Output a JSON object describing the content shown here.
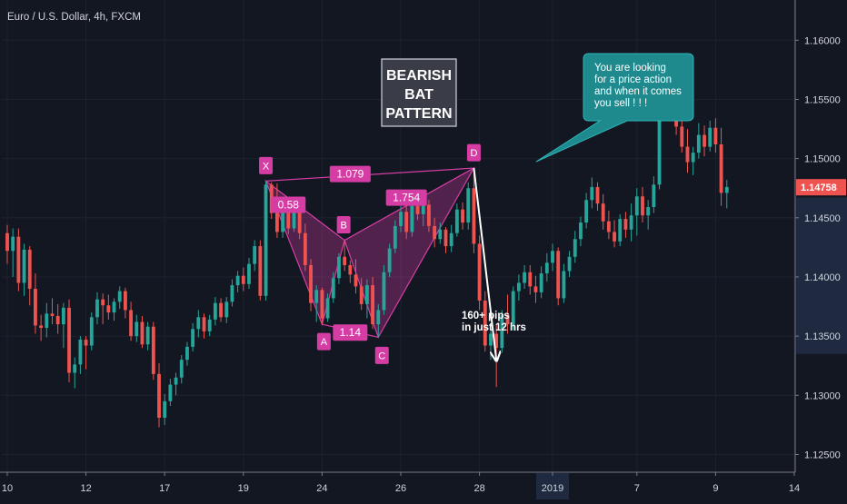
{
  "chart_data": {
    "type": "candlestick",
    "title": "Euro / U.S. Dollar, 4h, FXCM",
    "xlabel": "",
    "ylabel": "",
    "y_ticks": [
      "1.16000",
      "1.15500",
      "1.15000",
      "1.14500",
      "1.14000",
      "1.13500",
      "1.13000",
      "1.12500"
    ],
    "y_tick_values": [
      1.16,
      1.155,
      1.15,
      1.145,
      1.14,
      1.135,
      1.13,
      1.125
    ],
    "ylim": [
      1.1235,
      1.1634
    ],
    "x_ticks": [
      "10",
      "12",
      "17",
      "19",
      "24",
      "26",
      "28",
      "2019",
      "7",
      "9",
      "14"
    ],
    "x_tick_index": [
      0,
      14,
      28,
      42,
      56,
      70,
      84,
      97,
      112,
      126,
      140
    ],
    "x_index_range": [
      0,
      140
    ],
    "highlight_x_tick": "2019",
    "current_price": "1.14758",
    "current_price_value": 1.14758,
    "colors": {
      "up": "#26a69a",
      "down": "#ef5350",
      "pattern": "#d63da4",
      "callout": "#1e8a8e"
    },
    "pattern_points": [
      {
        "label": "X",
        "index": 46,
        "value": 1.1481
      },
      {
        "label": "A",
        "index": 56,
        "value": 1.136
      },
      {
        "label": "B",
        "index": 60,
        "value": 1.1431
      },
      {
        "label": "C",
        "index": 66,
        "value": 1.1349
      },
      {
        "label": "D",
        "index": 83,
        "value": 1.1492
      }
    ],
    "ratios": [
      {
        "label": "1.079",
        "index": 61,
        "value": 1.1487
      },
      {
        "label": "0.58",
        "index": 50,
        "value": 1.1461
      },
      {
        "label": "1.14",
        "index": 61,
        "value": 1.1353
      },
      {
        "label": "1.754",
        "index": 71,
        "value": 1.1467
      }
    ],
    "move_arrow": {
      "from_index": 83,
      "from_value": 1.1492,
      "to_index": 87,
      "to_value": 1.133
    },
    "annotations": {
      "pattern_name": [
        "BEARISH",
        "BAT",
        "PATTERN"
      ],
      "pips": [
        "160+ pips",
        "in just 12 hrs"
      ],
      "callout": [
        "You are looking",
        "for a price action",
        "and when it comes",
        "you sell ! ! !"
      ]
    },
    "candles": [
      [
        1.1437,
        1.1444,
        1.1411,
        1.1422
      ],
      [
        1.1422,
        1.1441,
        1.14,
        1.1434
      ],
      [
        1.1434,
        1.1441,
        1.1388,
        1.1395
      ],
      [
        1.1395,
        1.1428,
        1.1384,
        1.1423
      ],
      [
        1.1423,
        1.1426,
        1.1376,
        1.139
      ],
      [
        1.139,
        1.1403,
        1.1352,
        1.1359
      ],
      [
        1.1359,
        1.1368,
        1.1346,
        1.1357
      ],
      [
        1.1357,
        1.1378,
        1.1349,
        1.1369
      ],
      [
        1.1369,
        1.1382,
        1.136,
        1.1367
      ],
      [
        1.1367,
        1.1377,
        1.1352,
        1.136
      ],
      [
        1.136,
        1.1378,
        1.134,
        1.1374
      ],
      [
        1.1374,
        1.1381,
        1.1311,
        1.1319
      ],
      [
        1.1319,
        1.1332,
        1.1306,
        1.1326
      ],
      [
        1.1326,
        1.135,
        1.1318,
        1.1347
      ],
      [
        1.1347,
        1.135,
        1.1322,
        1.1342
      ],
      [
        1.1342,
        1.137,
        1.1338,
        1.1366
      ],
      [
        1.1366,
        1.1387,
        1.136,
        1.1381
      ],
      [
        1.1381,
        1.1386,
        1.136,
        1.1376
      ],
      [
        1.1376,
        1.1385,
        1.1364,
        1.137
      ],
      [
        1.137,
        1.1382,
        1.1363,
        1.1379
      ],
      [
        1.1379,
        1.1392,
        1.1373,
        1.1388
      ],
      [
        1.1388,
        1.1391,
        1.1365,
        1.1372
      ],
      [
        1.1372,
        1.1379,
        1.1346,
        1.135
      ],
      [
        1.135,
        1.1368,
        1.1345,
        1.1362
      ],
      [
        1.1362,
        1.1367,
        1.134,
        1.1343
      ],
      [
        1.1343,
        1.1362,
        1.1338,
        1.1358
      ],
      [
        1.1358,
        1.1362,
        1.1313,
        1.1318
      ],
      [
        1.1318,
        1.1327,
        1.1273,
        1.1281
      ],
      [
        1.1281,
        1.1301,
        1.1275,
        1.1295
      ],
      [
        1.1295,
        1.1314,
        1.1291,
        1.1309
      ],
      [
        1.1309,
        1.1319,
        1.13,
        1.1315
      ],
      [
        1.1315,
        1.1334,
        1.131,
        1.133
      ],
      [
        1.133,
        1.1345,
        1.1325,
        1.1341
      ],
      [
        1.1341,
        1.1361,
        1.1337,
        1.1356
      ],
      [
        1.1356,
        1.1372,
        1.1349,
        1.1366
      ],
      [
        1.1366,
        1.1369,
        1.1348,
        1.1354
      ],
      [
        1.1354,
        1.1368,
        1.135,
        1.1364
      ],
      [
        1.1364,
        1.1383,
        1.1359,
        1.1378
      ],
      [
        1.1378,
        1.1382,
        1.1362,
        1.1366
      ],
      [
        1.1366,
        1.1383,
        1.1361,
        1.1379
      ],
      [
        1.1379,
        1.1398,
        1.1375,
        1.1393
      ],
      [
        1.1393,
        1.1405,
        1.1387,
        1.1401
      ],
      [
        1.1401,
        1.1408,
        1.1388,
        1.1394
      ],
      [
        1.1394,
        1.1416,
        1.139,
        1.1411
      ],
      [
        1.1411,
        1.1431,
        1.1405,
        1.1426
      ],
      [
        1.1426,
        1.1431,
        1.138,
        1.1384
      ],
      [
        1.1384,
        1.1481,
        1.138,
        1.1478
      ],
      [
        1.1478,
        1.148,
        1.1449,
        1.1454
      ],
      [
        1.1454,
        1.1479,
        1.1433,
        1.1438
      ],
      [
        1.1438,
        1.146,
        1.1433,
        1.1455
      ],
      [
        1.1455,
        1.1461,
        1.1436,
        1.1441
      ],
      [
        1.1441,
        1.1463,
        1.1438,
        1.1459
      ],
      [
        1.1459,
        1.1462,
        1.1432,
        1.1437
      ],
      [
        1.1437,
        1.1445,
        1.1405,
        1.141
      ],
      [
        1.141,
        1.1415,
        1.1371,
        1.1378
      ],
      [
        1.1378,
        1.1393,
        1.1362,
        1.1389
      ],
      [
        1.1389,
        1.1391,
        1.136,
        1.1365
      ],
      [
        1.1365,
        1.1386,
        1.1362,
        1.1382
      ],
      [
        1.1382,
        1.1404,
        1.1378,
        1.1399
      ],
      [
        1.1399,
        1.142,
        1.1394,
        1.1417
      ],
      [
        1.1417,
        1.1431,
        1.1405,
        1.141
      ],
      [
        1.141,
        1.1414,
        1.1395,
        1.1402
      ],
      [
        1.1402,
        1.1415,
        1.1386,
        1.1392
      ],
      [
        1.1392,
        1.1399,
        1.1372,
        1.1377
      ],
      [
        1.1377,
        1.1398,
        1.1365,
        1.1393
      ],
      [
        1.1393,
        1.14,
        1.1356,
        1.136
      ],
      [
        1.136,
        1.1377,
        1.1349,
        1.1372
      ],
      [
        1.1372,
        1.141,
        1.1368,
        1.1404
      ],
      [
        1.1404,
        1.1428,
        1.14,
        1.1424
      ],
      [
        1.1424,
        1.1448,
        1.142,
        1.1443
      ],
      [
        1.1443,
        1.146,
        1.1438,
        1.1455
      ],
      [
        1.1455,
        1.1462,
        1.1432,
        1.1438
      ],
      [
        1.1438,
        1.1465,
        1.1434,
        1.146
      ],
      [
        1.146,
        1.147,
        1.1448,
        1.1453
      ],
      [
        1.1453,
        1.1466,
        1.1443,
        1.1461
      ],
      [
        1.1461,
        1.1465,
        1.1438,
        1.1443
      ],
      [
        1.1443,
        1.145,
        1.1425,
        1.1432
      ],
      [
        1.1432,
        1.1446,
        1.1428,
        1.144
      ],
      [
        1.144,
        1.1442,
        1.142,
        1.1426
      ],
      [
        1.1426,
        1.1444,
        1.1421,
        1.1437
      ],
      [
        1.1437,
        1.1462,
        1.1434,
        1.1457
      ],
      [
        1.1457,
        1.1463,
        1.144,
        1.1446
      ],
      [
        1.1446,
        1.148,
        1.144,
        1.1475
      ],
      [
        1.1475,
        1.1492,
        1.142,
        1.1428
      ],
      [
        1.1428,
        1.1435,
        1.1372,
        1.138
      ],
      [
        1.138,
        1.1388,
        1.1337,
        1.1342
      ],
      [
        1.1342,
        1.1361,
        1.133,
        1.1352
      ],
      [
        1.1352,
        1.136,
        1.1307,
        1.134
      ],
      [
        1.134,
        1.1372,
        1.1336,
        1.1368
      ],
      [
        1.1368,
        1.1385,
        1.1352,
        1.136
      ],
      [
        1.136,
        1.1392,
        1.1355,
        1.1388
      ],
      [
        1.1388,
        1.1402,
        1.138,
        1.1395
      ],
      [
        1.1395,
        1.141,
        1.139,
        1.1404
      ],
      [
        1.1404,
        1.141,
        1.1385,
        1.1392
      ],
      [
        1.1392,
        1.1401,
        1.1378,
        1.1387
      ],
      [
        1.1387,
        1.1409,
        1.1382,
        1.1403
      ],
      [
        1.1403,
        1.142,
        1.1396,
        1.1412
      ],
      [
        1.1412,
        1.1428,
        1.1405,
        1.1422
      ],
      [
        1.1422,
        1.1425,
        1.1376,
        1.1382
      ],
      [
        1.1382,
        1.1411,
        1.1378,
        1.1405
      ],
      [
        1.1405,
        1.1422,
        1.14,
        1.1417
      ],
      [
        1.1417,
        1.1439,
        1.1412,
        1.1432
      ],
      [
        1.1432,
        1.1451,
        1.1426,
        1.1446
      ],
      [
        1.1446,
        1.1471,
        1.1441,
        1.1465
      ],
      [
        1.1465,
        1.1484,
        1.1458,
        1.1476
      ],
      [
        1.1476,
        1.148,
        1.1456,
        1.1462
      ],
      [
        1.1462,
        1.147,
        1.144,
        1.1447
      ],
      [
        1.1447,
        1.1456,
        1.1432,
        1.1438
      ],
      [
        1.1438,
        1.1448,
        1.1425,
        1.143
      ],
      [
        1.143,
        1.1453,
        1.1426,
        1.1449
      ],
      [
        1.1449,
        1.1455,
        1.1433,
        1.144
      ],
      [
        1.144,
        1.1462,
        1.143,
        1.1452
      ],
      [
        1.1452,
        1.1475,
        1.1435,
        1.1468
      ],
      [
        1.1468,
        1.1476,
        1.1446,
        1.1452
      ],
      [
        1.1452,
        1.1465,
        1.144,
        1.1459
      ],
      [
        1.1459,
        1.1485,
        1.1454,
        1.1478
      ],
      [
        1.1478,
        1.156,
        1.1474,
        1.1551
      ],
      [
        1.1551,
        1.1575,
        1.1535,
        1.1563
      ],
      [
        1.1563,
        1.1568,
        1.1538,
        1.1543
      ],
      [
        1.1543,
        1.1556,
        1.152,
        1.1527
      ],
      [
        1.1527,
        1.1537,
        1.1505,
        1.151
      ],
      [
        1.151,
        1.1525,
        1.1488,
        1.1497
      ],
      [
        1.1497,
        1.151,
        1.1486,
        1.1505
      ],
      [
        1.1505,
        1.153,
        1.15,
        1.152
      ],
      [
        1.152,
        1.1528,
        1.1502,
        1.151
      ],
      [
        1.151,
        1.1532,
        1.1506,
        1.1526
      ],
      [
        1.1526,
        1.1534,
        1.1505,
        1.1512
      ],
      [
        1.1512,
        1.1526,
        1.146,
        1.1471
      ],
      [
        1.1471,
        1.1482,
        1.1458,
        1.1476
      ]
    ]
  }
}
